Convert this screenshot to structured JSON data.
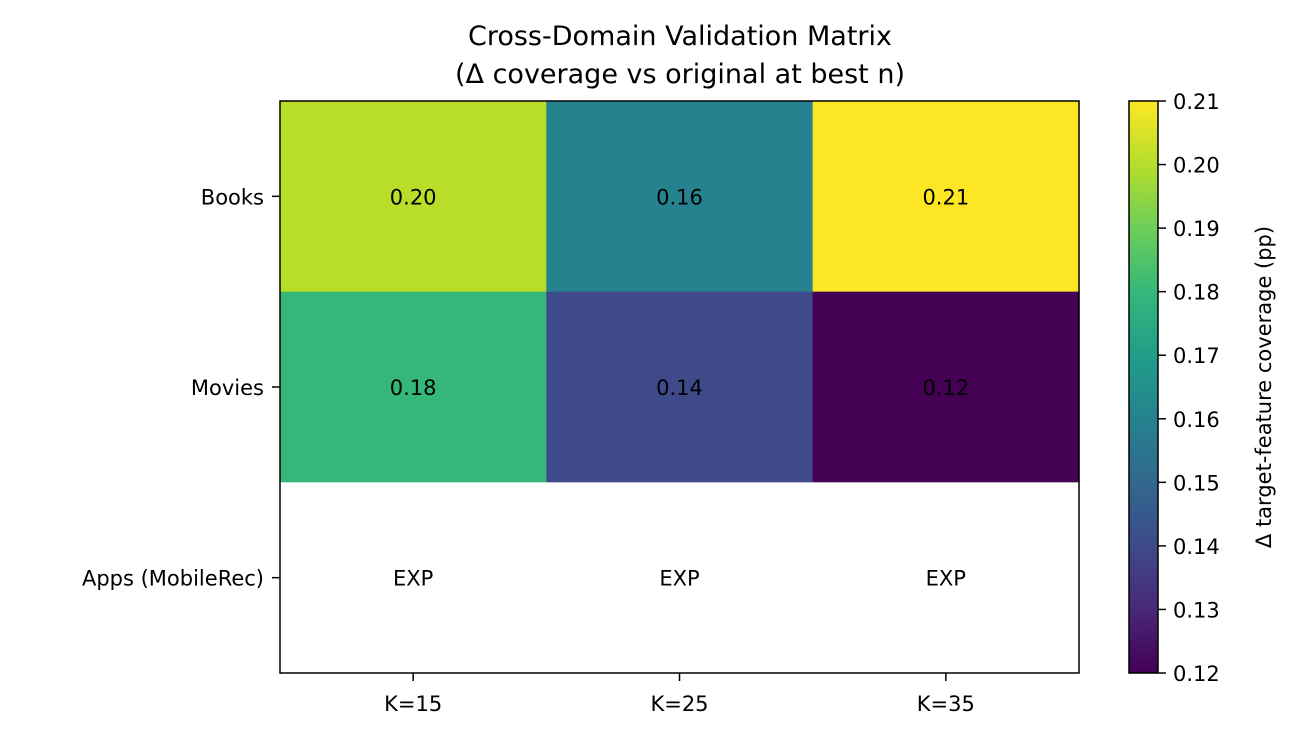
{
  "chart_data": {
    "type": "heatmap",
    "title": "Cross-Domain Validation Matrix",
    "subtitle": "(Δ coverage vs original at best n)",
    "columns": [
      "K=15",
      "K=25",
      "K=35"
    ],
    "rows": [
      "Books",
      "Movies",
      "Apps (MobileRec)"
    ],
    "values": [
      [
        0.2,
        0.16,
        0.21
      ],
      [
        0.18,
        0.14,
        0.12
      ],
      [
        null,
        null,
        null
      ]
    ],
    "cell_labels": [
      [
        "0.20",
        "0.16",
        "0.21"
      ],
      [
        "0.18",
        "0.14",
        "0.12"
      ],
      [
        "EXP",
        "EXP",
        "EXP"
      ]
    ],
    "colormap": "viridis",
    "colorbar": {
      "label": "Δ target-feature coverage (pp)",
      "range": [
        0.12,
        0.21
      ],
      "ticks": [
        "0.12",
        "0.13",
        "0.14",
        "0.15",
        "0.16",
        "0.17",
        "0.18",
        "0.19",
        "0.20",
        "0.21"
      ]
    },
    "cell_colors": [
      [
        "#b8de29",
        "#26828e",
        "#fde725"
      ],
      [
        "#35b779",
        "#3e4a89",
        "#440154"
      ],
      [
        "#ffffff",
        "#ffffff",
        "#ffffff"
      ]
    ]
  }
}
